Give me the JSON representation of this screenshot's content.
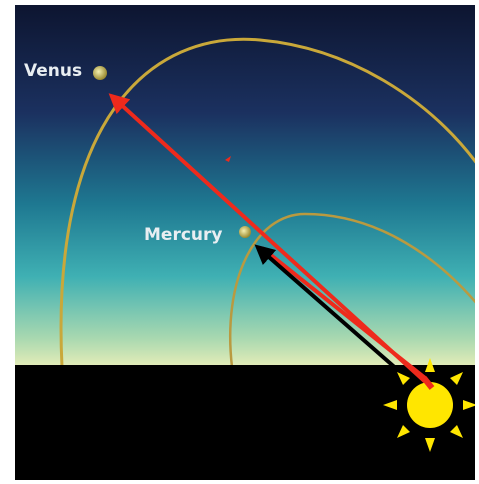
{
  "labels": {
    "venus": "Venus",
    "mercury": "Mercury"
  }
}
